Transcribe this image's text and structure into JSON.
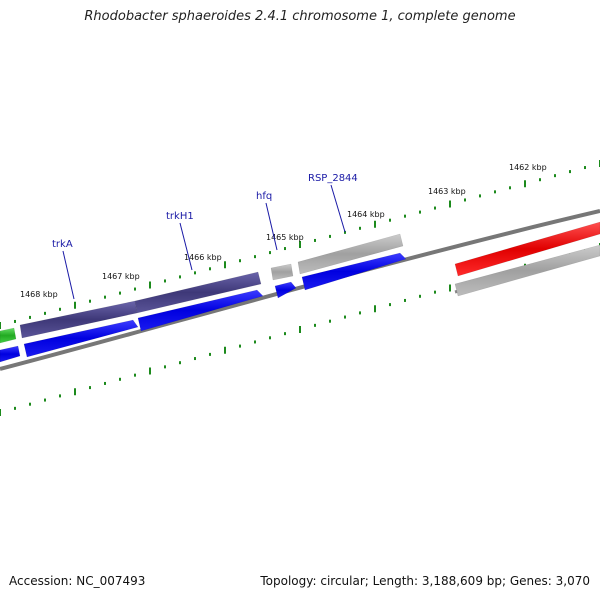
{
  "title": "Rhodobacter sphaeroides 2.4.1 chromosome 1, complete genome",
  "footer": {
    "accession_label": "Accession:",
    "accession": "NC_007493",
    "stats": "Topology: circular; Length: 3,188,609 bp; Genes: 3,070"
  },
  "scale_ticks": [
    "1468 kbp",
    "1467 kbp",
    "1466 kbp",
    "1465 kbp",
    "1464 kbp",
    "1463 kbp",
    "1462 kbp"
  ],
  "gene_labels": [
    "trkA",
    "trkH1",
    "hfq",
    "RSP_2844"
  ],
  "colors": {
    "backbone": "#777777",
    "ticks": "#1c8a1c",
    "label_line": "#1a1aa6",
    "cds_forward": "#0000ee",
    "gene_purple": "#4a4488",
    "gene_gray": "#a8a8a8",
    "gene_red": "#ee0000",
    "gene_green": "#33bb33"
  }
}
